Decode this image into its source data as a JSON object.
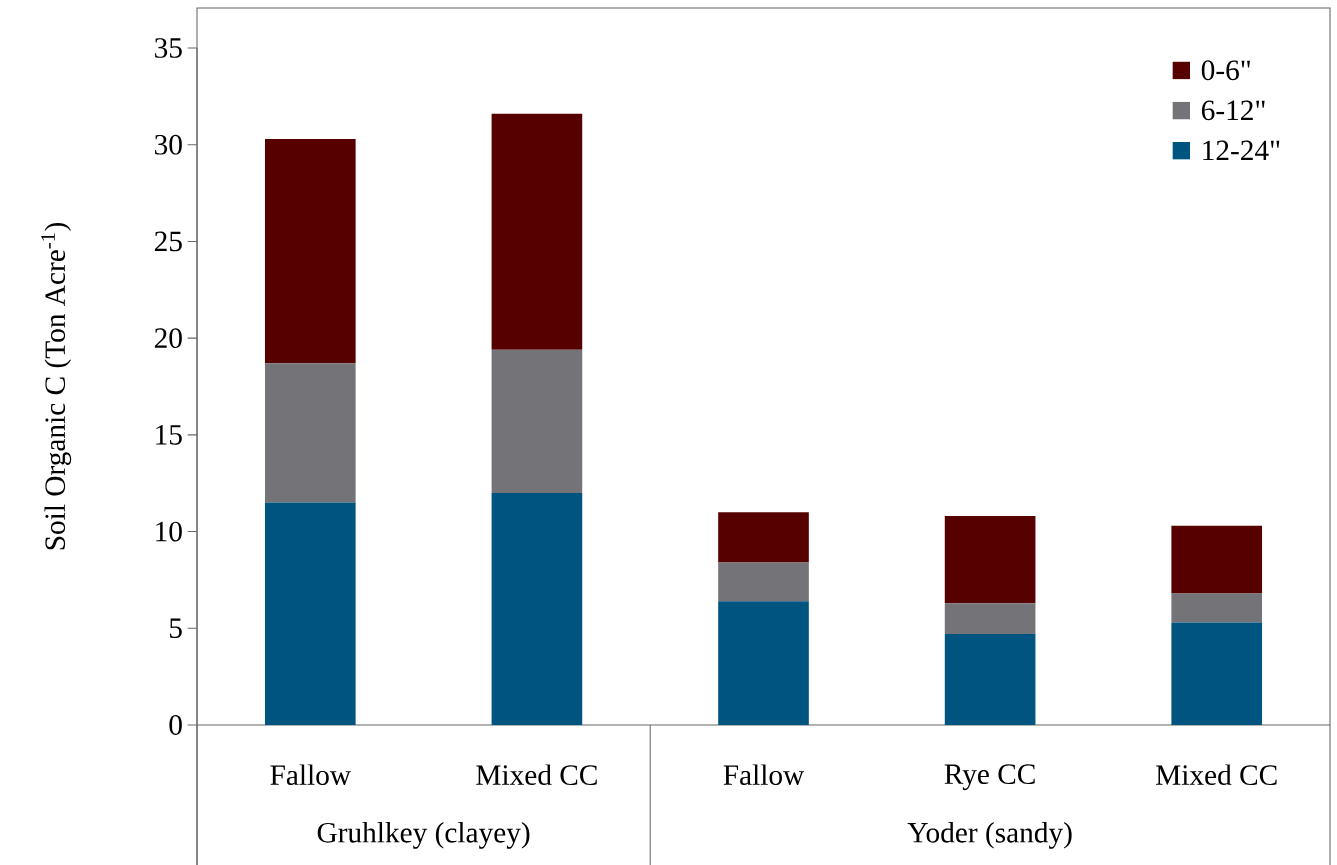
{
  "chart_data": {
    "type": "bar",
    "stacked": true,
    "ylabel": "Soil Organic C (Ton Acre$^{-1}$)",
    "categories": [
      "Fallow",
      "Mixed CC",
      "Fallow",
      "Rye CC",
      "Mixed CC"
    ],
    "series": [
      {
        "name": "12-24\"",
        "color": "#005580",
        "values": [
          11.5,
          12.0,
          6.4,
          4.7,
          5.3
        ]
      },
      {
        "name": "6-12\"",
        "color": "#747378",
        "values": [
          7.2,
          7.4,
          2.0,
          1.6,
          1.5
        ]
      },
      {
        "name": "0-6\"",
        "color": "#560000",
        "values": [
          11.6,
          12.2,
          2.6,
          4.5,
          3.5
        ]
      }
    ],
    "annotations": [
      "Gruhlkey (clayey)",
      "Yoder (sandy)"
    ],
    "ylim": [
      0,
      35
    ],
    "yticks": [
      0,
      5,
      10,
      15,
      20,
      25,
      30,
      35
    ],
    "grid": false,
    "legend": "top right"
  }
}
